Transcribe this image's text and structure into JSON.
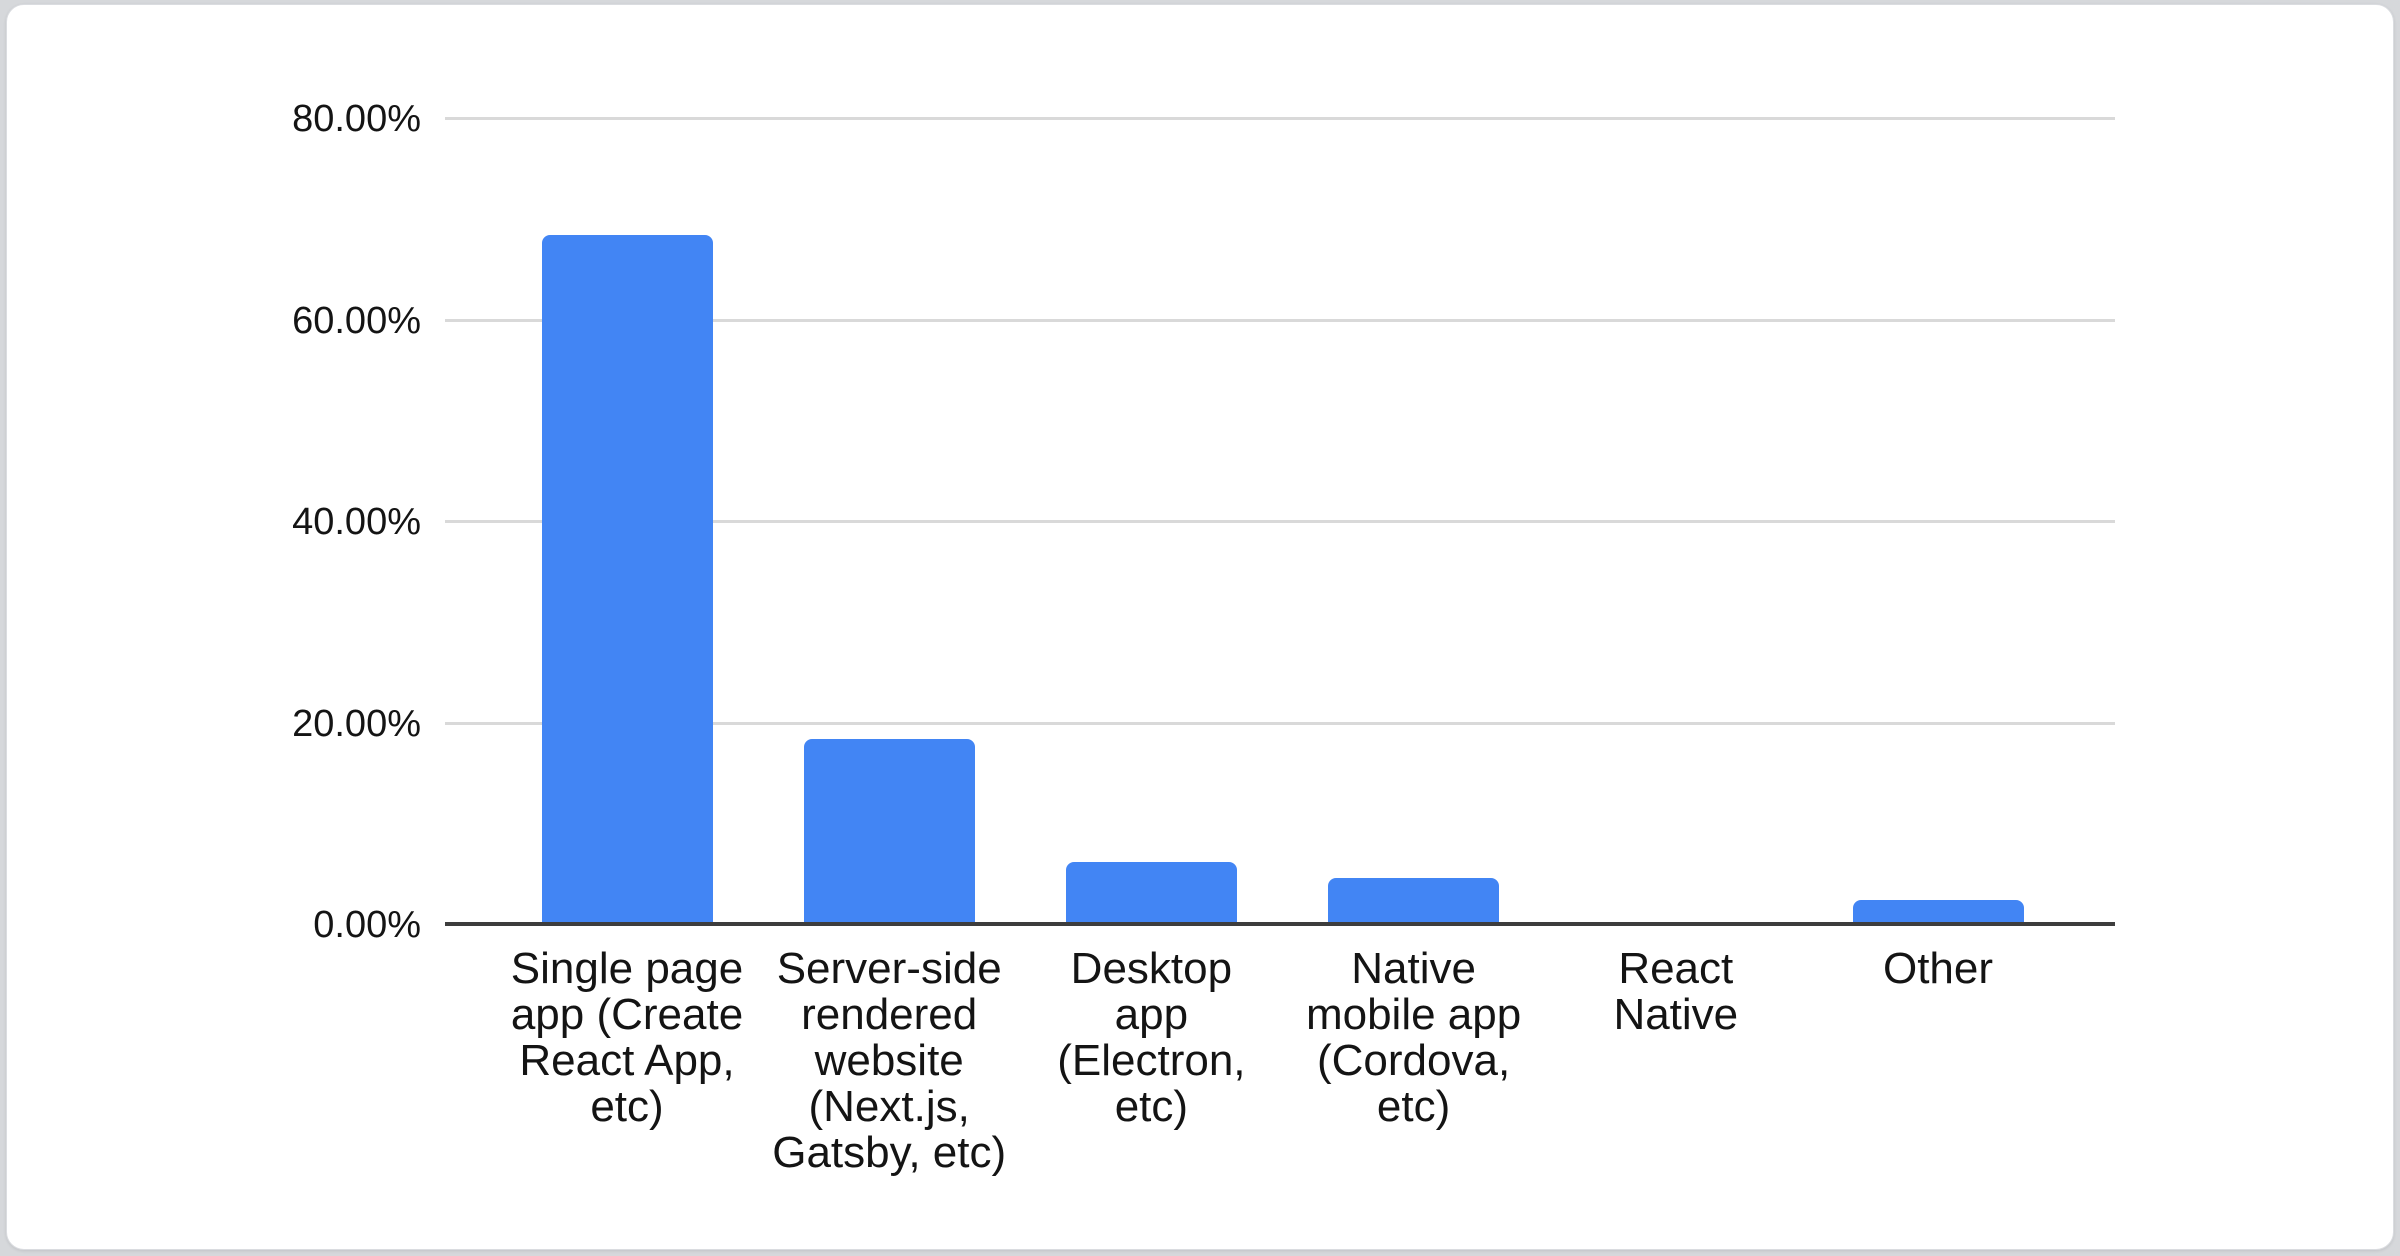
{
  "page": {
    "background_color": "#d6d8db",
    "card_background": "#ffffff"
  },
  "chart_data": {
    "type": "bar",
    "title": "",
    "xlabel": "",
    "ylabel": "",
    "legend": "none",
    "grid": true,
    "ylim": [
      0,
      80
    ],
    "yticks": [
      {
        "value": 0,
        "label": "0.00%"
      },
      {
        "value": 20,
        "label": "20.00%"
      },
      {
        "value": 40,
        "label": "40.00%"
      },
      {
        "value": 60,
        "label": "60.00%"
      },
      {
        "value": 80,
        "label": "80.00%"
      }
    ],
    "categories": [
      {
        "label": "Single page app (Create React App, etc)",
        "lines": [
          "Single page",
          "app (Create",
          "React App,",
          "etc)"
        ]
      },
      {
        "label": "Server-side rendered website (Next.js, Gatsby, etc)",
        "lines": [
          "Server-side",
          "rendered",
          "website",
          "(Next.js,",
          "Gatsby, etc)"
        ]
      },
      {
        "label": "Desktop app (Electron, etc)",
        "lines": [
          "Desktop",
          "app",
          "(Electron,",
          "etc)"
        ]
      },
      {
        "label": "Native mobile app (Cordova, etc)",
        "lines": [
          "Native",
          "mobile app",
          "(Cordova,",
          "etc)"
        ]
      },
      {
        "label": "React Native",
        "lines": [
          "React",
          "Native"
        ]
      },
      {
        "label": "Other",
        "lines": [
          "Other"
        ]
      }
    ],
    "values": [
      68.4,
      18.4,
      6.2,
      4.6,
      0,
      2.4
    ],
    "value_unit": "%",
    "bar_color": "#4285F4",
    "axis_line_color": "#3d3d3d",
    "gridline_color": "#d9d9d9",
    "text_color": "#141414"
  }
}
